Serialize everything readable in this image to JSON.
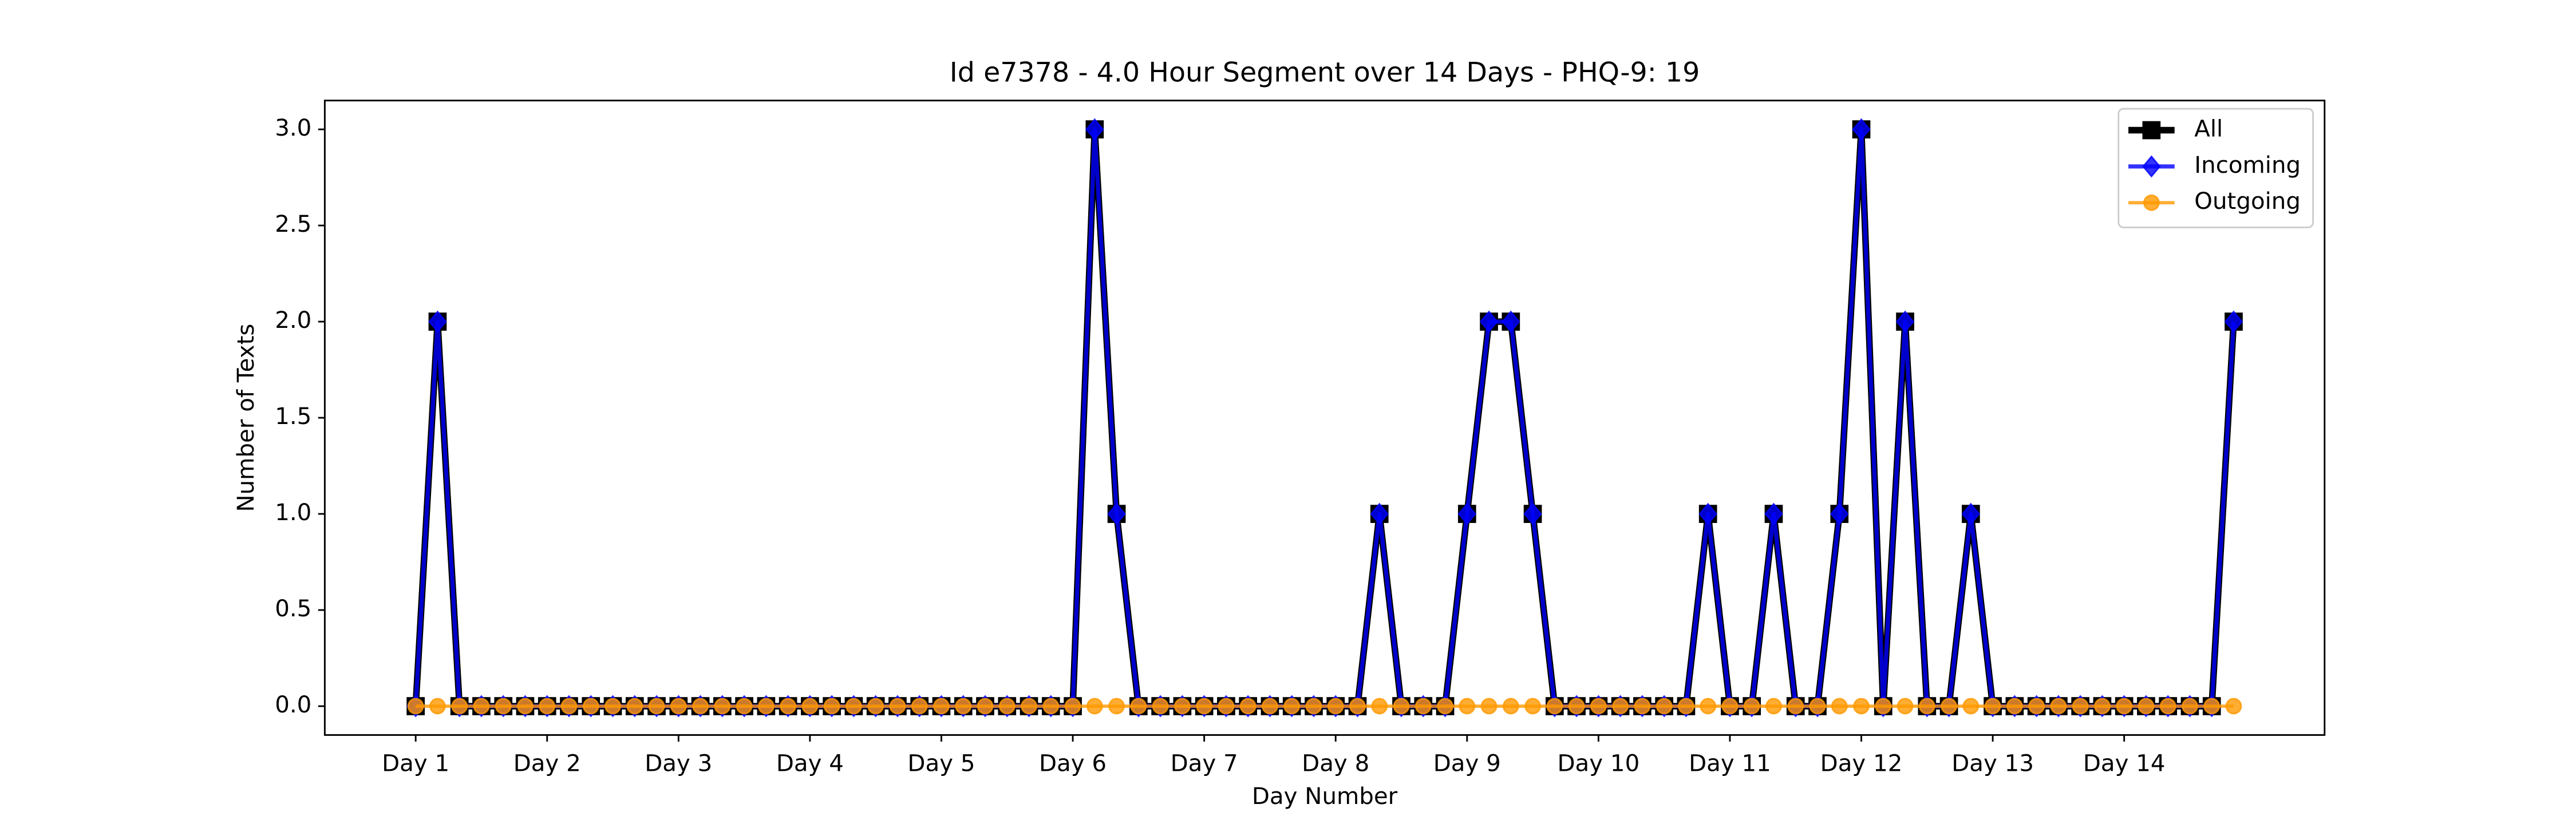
{
  "chart_data": {
    "type": "line",
    "title": "Id e7378 - 4.0 Hour Segment over 14 Days - PHQ-9: 19",
    "xlabel": "Day Number",
    "ylabel": "Number of Texts",
    "x": [
      0,
      1,
      2,
      3,
      4,
      5,
      6,
      7,
      8,
      9,
      10,
      11,
      12,
      13,
      14,
      15,
      16,
      17,
      18,
      19,
      20,
      21,
      22,
      23,
      24,
      25,
      26,
      27,
      28,
      29,
      30,
      31,
      32,
      33,
      34,
      35,
      36,
      37,
      38,
      39,
      40,
      41,
      42,
      43,
      44,
      45,
      46,
      47,
      48,
      49,
      50,
      51,
      52,
      53,
      54,
      55,
      56,
      57,
      58,
      59,
      60,
      61,
      62,
      63,
      64,
      65,
      66,
      67,
      68,
      69,
      70,
      71,
      72,
      73,
      74,
      75,
      76,
      77,
      78,
      79,
      80,
      81,
      82,
      83
    ],
    "series": [
      {
        "name": "All",
        "color": "#000000",
        "marker": "square",
        "width": 4,
        "values": [
          0,
          2,
          0,
          0,
          0,
          0,
          0,
          0,
          0,
          0,
          0,
          0,
          0,
          0,
          0,
          0,
          0,
          0,
          0,
          0,
          0,
          0,
          0,
          0,
          0,
          0,
          0,
          0,
          0,
          0,
          0,
          3,
          1,
          0,
          0,
          0,
          0,
          0,
          0,
          0,
          0,
          0,
          0,
          0,
          1,
          0,
          0,
          0,
          1,
          2,
          2,
          1,
          0,
          0,
          0,
          0,
          0,
          0,
          0,
          1,
          0,
          0,
          1,
          0,
          0,
          1,
          3,
          0,
          2,
          0,
          0,
          1,
          0,
          0,
          0,
          0,
          0,
          0,
          0,
          0,
          0,
          0,
          0,
          2
        ]
      },
      {
        "name": "Incoming",
        "color": "#0000ff",
        "marker": "diamond",
        "width": 2.5,
        "values": [
          0,
          2,
          0,
          0,
          0,
          0,
          0,
          0,
          0,
          0,
          0,
          0,
          0,
          0,
          0,
          0,
          0,
          0,
          0,
          0,
          0,
          0,
          0,
          0,
          0,
          0,
          0,
          0,
          0,
          0,
          0,
          3,
          1,
          0,
          0,
          0,
          0,
          0,
          0,
          0,
          0,
          0,
          0,
          0,
          1,
          0,
          0,
          0,
          1,
          2,
          2,
          1,
          0,
          0,
          0,
          0,
          0,
          0,
          0,
          1,
          0,
          0,
          1,
          0,
          0,
          1,
          3,
          0,
          2,
          0,
          0,
          1,
          0,
          0,
          0,
          0,
          0,
          0,
          0,
          0,
          0,
          0,
          0,
          2
        ]
      },
      {
        "name": "Outgoing",
        "color": "#ff9900",
        "marker": "circle",
        "width": 2,
        "values": [
          0,
          0,
          0,
          0,
          0,
          0,
          0,
          0,
          0,
          0,
          0,
          0,
          0,
          0,
          0,
          0,
          0,
          0,
          0,
          0,
          0,
          0,
          0,
          0,
          0,
          0,
          0,
          0,
          0,
          0,
          0,
          0,
          0,
          0,
          0,
          0,
          0,
          0,
          0,
          0,
          0,
          0,
          0,
          0,
          0,
          0,
          0,
          0,
          0,
          0,
          0,
          0,
          0,
          0,
          0,
          0,
          0,
          0,
          0,
          0,
          0,
          0,
          0,
          0,
          0,
          0,
          0,
          0,
          0,
          0,
          0,
          0,
          0,
          0,
          0,
          0,
          0,
          0,
          0,
          0,
          0,
          0,
          0,
          0
        ]
      }
    ],
    "xlim": [
      -4.15,
      87.15
    ],
    "xticks": [
      {
        "value": 0,
        "label": "Day 1"
      },
      {
        "value": 6,
        "label": "Day 2"
      },
      {
        "value": 12,
        "label": "Day 3"
      },
      {
        "value": 18,
        "label": "Day 4"
      },
      {
        "value": 24,
        "label": "Day 5"
      },
      {
        "value": 30,
        "label": "Day 6"
      },
      {
        "value": 36,
        "label": "Day 7"
      },
      {
        "value": 42,
        "label": "Day 8"
      },
      {
        "value": 48,
        "label": "Day 9"
      },
      {
        "value": 54,
        "label": "Day 10"
      },
      {
        "value": 60,
        "label": "Day 11"
      },
      {
        "value": 66,
        "label": "Day 12"
      },
      {
        "value": 72,
        "label": "Day 13"
      },
      {
        "value": 78,
        "label": "Day 14"
      }
    ],
    "ylim": [
      -0.15,
      3.15
    ],
    "yticks": [
      {
        "value": 0,
        "label": "0.0"
      },
      {
        "value": 0.5,
        "label": "0.5"
      },
      {
        "value": 1,
        "label": "1.0"
      },
      {
        "value": 1.5,
        "label": "1.5"
      },
      {
        "value": 2,
        "label": "2.0"
      },
      {
        "value": 2.5,
        "label": "2.5"
      },
      {
        "value": 3,
        "label": "3.0"
      }
    ],
    "legend": "upper right",
    "grid": false
  }
}
